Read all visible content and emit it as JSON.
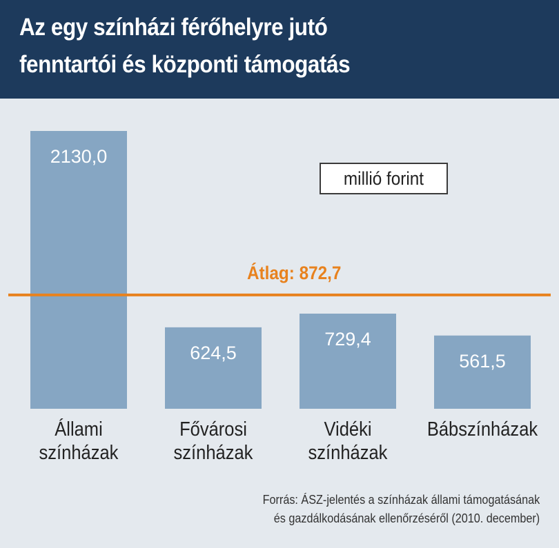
{
  "header": {
    "title_line1": "Az egy színházi férőhelyre jutó",
    "title_line2": "fenntartói és központi támogatás"
  },
  "colors": {
    "header_bg": "#1d3a5c",
    "bar": "#86a6c3",
    "average_line": "#e8821e",
    "panel_bg": "#e4e9ee"
  },
  "chart_data": {
    "type": "bar",
    "title": "Az egy színházi férőhelyre jutó fenntartói és központi támogatás",
    "unit": "millió forint",
    "categories": [
      [
        "Állami",
        "színházak"
      ],
      [
        "Fővárosi",
        "színházak"
      ],
      [
        "Vidéki",
        "színházak"
      ],
      [
        "Bábszínházak"
      ]
    ],
    "values": [
      2130.0,
      624.5,
      729.4,
      561.5
    ],
    "value_labels": [
      "2130,0",
      "624,5",
      "729,4",
      "561,5"
    ],
    "average": {
      "label": "Átlag: 872,7",
      "value": 872.7
    },
    "grid": false,
    "legend": "none"
  },
  "source": {
    "line1": "Forrás: ÁSZ-jelentés a színházak állami támogatásának",
    "line2": "és gazdálkodásának ellenőrzéséről (2010. december)"
  }
}
